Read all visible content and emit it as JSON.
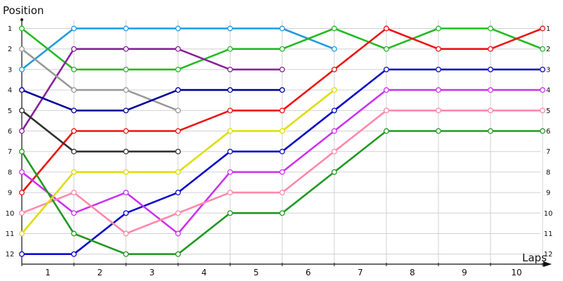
{
  "chart_data": {
    "type": "line",
    "ylabel": "Position",
    "xlabel": "Laps",
    "x_categories": [
      "1",
      "2",
      "3",
      "4",
      "5",
      "6",
      "7",
      "8",
      "9",
      "10"
    ],
    "ylim": [
      1,
      12
    ],
    "y_ticks": [
      "1",
      "2",
      "3",
      "4",
      "5",
      "6",
      "7",
      "8",
      "9",
      "10",
      "11",
      "12"
    ],
    "grid": true,
    "series": [
      {
        "color": "#1e9be0",
        "x": [
          0,
          1,
          2,
          3,
          4,
          5,
          6
        ],
        "values": [
          3,
          1,
          1,
          1,
          1,
          1,
          2
        ]
      },
      {
        "color": "#22bb22",
        "x": [
          0,
          1,
          2,
          3,
          4,
          5,
          6,
          7,
          8,
          9,
          10
        ],
        "values": [
          1,
          3,
          3,
          3,
          2,
          2,
          1,
          2,
          1,
          1,
          2
        ]
      },
      {
        "color": "#ee1111",
        "x": [
          0,
          1,
          2,
          3,
          4,
          5,
          6,
          7,
          8,
          9,
          10
        ],
        "values": [
          9,
          6,
          6,
          6,
          5,
          5,
          3,
          1,
          2,
          2,
          1
        ]
      },
      {
        "color": "#0a0acc",
        "x": [
          0,
          1,
          2,
          3,
          4,
          5,
          6,
          7,
          8,
          9,
          10
        ],
        "values": [
          12,
          12,
          10,
          9,
          7,
          7,
          5,
          3,
          3,
          3,
          3
        ]
      },
      {
        "color": "#cc33ee",
        "x": [
          0,
          1,
          2,
          3,
          4,
          5,
          6,
          7,
          8,
          9,
          10
        ],
        "values": [
          8,
          10,
          9,
          11,
          8,
          8,
          6,
          4,
          4,
          4,
          4
        ]
      },
      {
        "color": "#ff88aa",
        "x": [
          0,
          1,
          2,
          3,
          4,
          5,
          6,
          7,
          8,
          9,
          10
        ],
        "values": [
          10,
          9,
          11,
          10,
          9,
          9,
          7,
          5,
          5,
          5,
          5
        ]
      },
      {
        "color": "#229922",
        "x": [
          0,
          1,
          2,
          3,
          4,
          5,
          6,
          7,
          8,
          9,
          10
        ],
        "values": [
          7,
          11,
          12,
          12,
          10,
          10,
          8,
          6,
          6,
          6,
          6
        ]
      },
      {
        "color": "#dddd00",
        "x": [
          0,
          1,
          2,
          3,
          4,
          5,
          6
        ],
        "values": [
          11,
          8,
          8,
          8,
          6,
          6,
          4
        ]
      },
      {
        "color": "#882299",
        "x": [
          0,
          1,
          2,
          3,
          4,
          5
        ],
        "values": [
          6,
          2,
          2,
          2,
          3,
          3
        ]
      },
      {
        "color": "#999999",
        "x": [
          0,
          1,
          2,
          3
        ],
        "values": [
          2,
          4,
          4,
          5
        ]
      },
      {
        "color": "#000099",
        "x": [
          0,
          1,
          2,
          3,
          4,
          5
        ],
        "values": [
          4,
          5,
          5,
          4,
          4,
          4
        ]
      },
      {
        "color": "#333333",
        "x": [
          0,
          1,
          2,
          3
        ],
        "values": [
          5,
          7,
          7,
          7
        ]
      }
    ]
  }
}
